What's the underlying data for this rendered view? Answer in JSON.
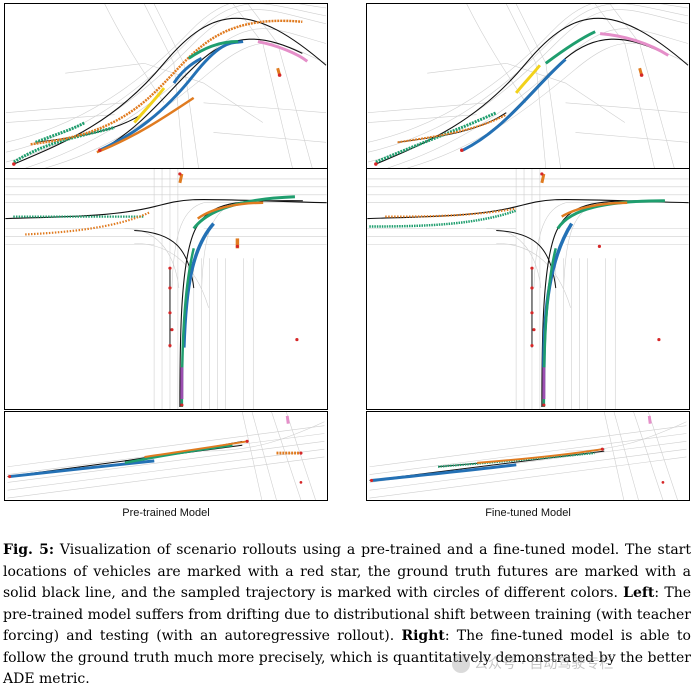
{
  "labels": {
    "left": "Pre-trained Model",
    "right": "Fine-tuned Model"
  },
  "caption": {
    "fig_label": "Fig. 5:",
    "intro": " Visualization of scenario rollouts using a pre-trained and a fine-tuned model. The start locations of vehicles are marked with a red star, the ground truth futures are marked with a solid black line, and the sampled trajectory is marked with circles of different colors. ",
    "left_label": "Left",
    "left_text": ": The pre-trained model suffers from drifting due to distributional shift between training (with teacher forcing) and testing (with an autoregressive rollout). ",
    "right_label": "Right",
    "right_text": ": The fine-tuned model is able to follow the ground truth much more precisely, which is quantitatively demonstrated by the better ADE metric."
  },
  "watermark": "公众号 · 自动驾驶专栏",
  "colors": {
    "ground_truth": "#111111",
    "start_star": "#d62728",
    "green": "#1f9e6e",
    "orange": "#e07b20",
    "blue": "#2471b5",
    "yellow": "#f2d21b",
    "pink": "#e58fc9",
    "purple": "#9b4fb0",
    "road": "#c8c8c8"
  }
}
